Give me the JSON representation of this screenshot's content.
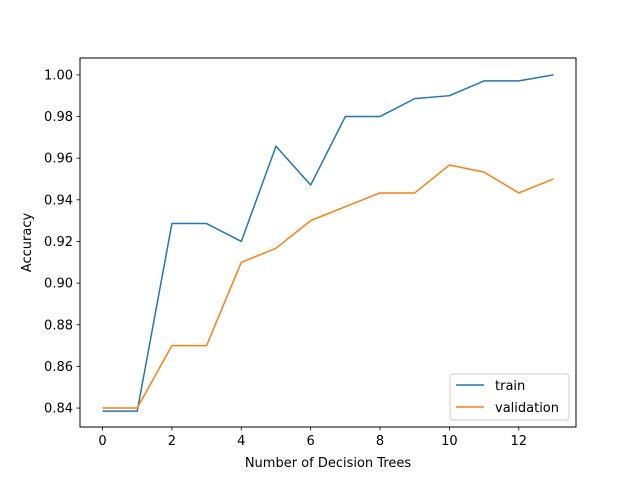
{
  "chart_data": {
    "type": "line",
    "title": "",
    "xlabel": "Number of Decision Trees",
    "ylabel": "Accuracy",
    "xlim": [
      -0.65,
      13.65
    ],
    "ylim": [
      0.8309,
      1.0081
    ],
    "xticks": [
      0,
      2,
      4,
      6,
      8,
      10,
      12
    ],
    "xtick_labels": [
      "0",
      "2",
      "4",
      "6",
      "8",
      "10",
      "12"
    ],
    "yticks": [
      0.84,
      0.86,
      0.88,
      0.9,
      0.92,
      0.94,
      0.96,
      0.98,
      1.0
    ],
    "ytick_labels": [
      "0.84",
      "0.86",
      "0.88",
      "0.90",
      "0.92",
      "0.94",
      "0.96",
      "0.98",
      "1.00"
    ],
    "x": [
      0,
      1,
      2,
      3,
      4,
      5,
      6,
      7,
      8,
      9,
      10,
      11,
      12,
      13
    ],
    "series": [
      {
        "name": "train",
        "color": "#1f77b4",
        "values": [
          0.8385,
          0.8385,
          0.9286,
          0.9286,
          0.92,
          0.9657,
          0.9471,
          0.98,
          0.98,
          0.9886,
          0.99,
          0.9971,
          0.9971,
          1.0
        ]
      },
      {
        "name": "validation",
        "color": "#ff7f0e",
        "values": [
          0.84,
          0.84,
          0.87,
          0.87,
          0.91,
          0.9167,
          0.93,
          0.9367,
          0.9433,
          0.9433,
          0.9567,
          0.9533,
          0.9433,
          0.95
        ]
      }
    ],
    "grid": false,
    "legend_position": "lower right"
  }
}
